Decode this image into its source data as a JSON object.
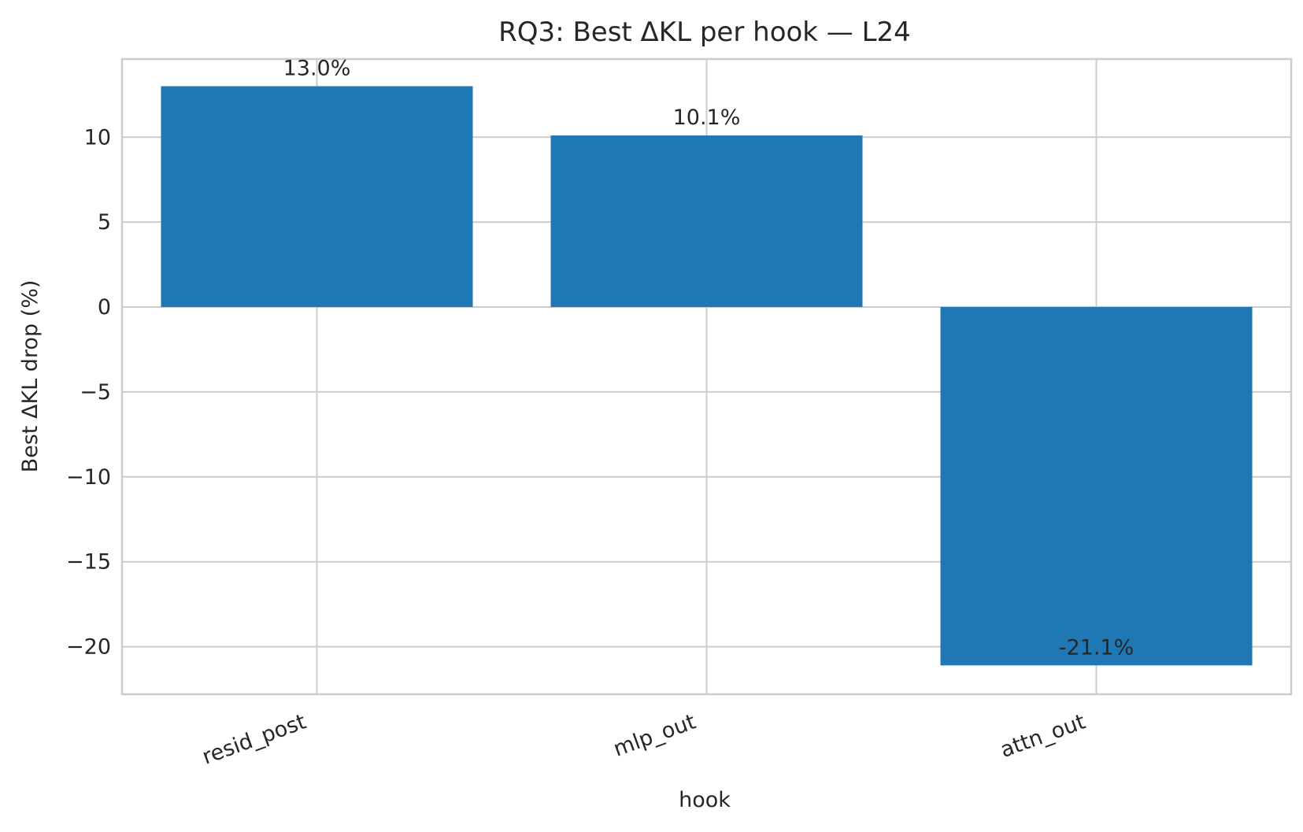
{
  "chart_data": {
    "type": "bar",
    "title": "RQ3: Best ΔKL per hook — L24",
    "xlabel": "hook",
    "ylabel": "Best ΔKL drop (%)",
    "categories": [
      "resid_post",
      "mlp_out",
      "attn_out"
    ],
    "values": [
      13.0,
      10.1,
      -21.1
    ],
    "data_labels": [
      "13.0%",
      "10.1%",
      "-21.1%"
    ],
    "ylim": [
      -22.8,
      14.6
    ],
    "yticks": [
      -20,
      -15,
      -10,
      -5,
      0,
      5,
      10
    ],
    "ytick_labels": [
      "−20",
      "−15",
      "−10",
      "−5",
      "0",
      "5",
      "10"
    ],
    "grid": true,
    "legend": "none",
    "colors": {
      "bar": "#1f77b4",
      "grid": "#cccccc",
      "spine": "#cccccc",
      "text": "#262626"
    }
  }
}
